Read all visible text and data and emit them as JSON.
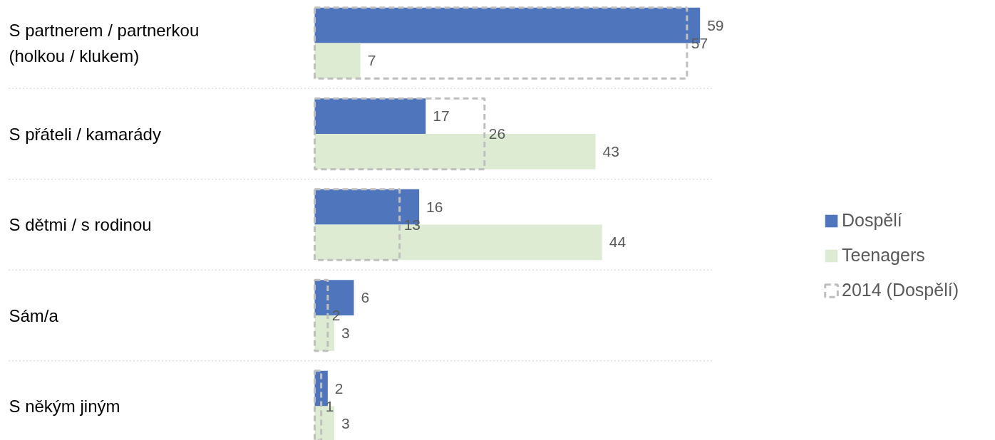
{
  "chart_data": {
    "type": "bar",
    "orientation": "horizontal",
    "categories": [
      "S partnerem / partnerkou (holkou / klukem)",
      "S přáteli / kamarády",
      "S dětmi / s rodinou",
      "Sám/a",
      "S někým jiným"
    ],
    "series": [
      {
        "name": "Dospělí",
        "color": "#4f75bc",
        "values": [
          59,
          17,
          16,
          6,
          2
        ]
      },
      {
        "name": "Teenagers",
        "color": "#dcebd1",
        "values": [
          7,
          43,
          44,
          3,
          3
        ]
      },
      {
        "name": "2014 (Dospělí)",
        "color": "#bfbfbf",
        "values": [
          57,
          26,
          13,
          2,
          1
        ],
        "line_style": "dashed"
      }
    ],
    "xlim": [
      0,
      61
    ],
    "data_labels": true,
    "grid": "y",
    "legend": "right",
    "tick_labels": false
  }
}
